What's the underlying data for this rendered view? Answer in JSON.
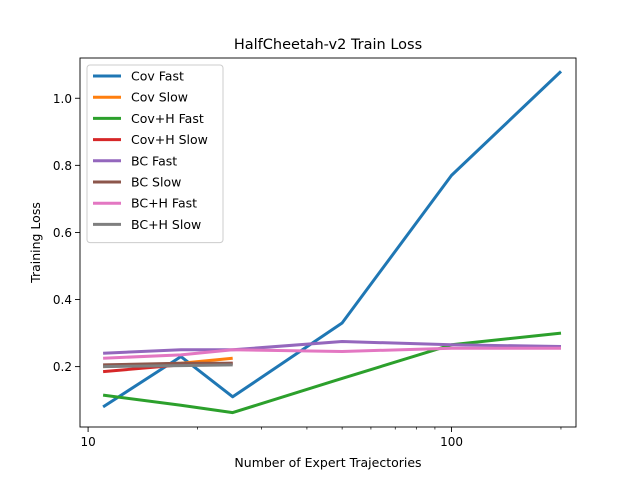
{
  "chart_data": {
    "type": "line",
    "title": "HalfCheetah-v2 Train Loss",
    "xlabel": "Number of Expert Trajectories",
    "ylabel": "Training Loss",
    "xscale": "log",
    "xlim": [
      9.5,
      220
    ],
    "ylim": [
      0.02,
      1.12
    ],
    "xticks": [
      10,
      100
    ],
    "xtick_labels": [
      "10",
      "100"
    ],
    "yticks": [
      0.2,
      0.4,
      0.6,
      0.8,
      1.0
    ],
    "ytick_labels": [
      "0.2",
      "0.4",
      "0.6",
      "0.8",
      "1.0"
    ],
    "grid": false,
    "legend_position": "top-left",
    "series": [
      {
        "name": "Cov Fast",
        "color": "#1f77b4",
        "x": [
          11,
          18,
          25,
          50,
          100,
          200
        ],
        "y": [
          0.08,
          0.23,
          0.11,
          0.33,
          0.77,
          1.08
        ]
      },
      {
        "name": "Cov Slow",
        "color": "#ff7f0e",
        "x": [
          11,
          18,
          25
        ],
        "y": [
          0.2,
          0.21,
          0.225
        ]
      },
      {
        "name": "Cov+H Fast",
        "color": "#2ca02c",
        "x": [
          11,
          18,
          25,
          50,
          100,
          200
        ],
        "y": [
          0.115,
          0.085,
          0.063,
          0.165,
          0.265,
          0.3
        ]
      },
      {
        "name": "Cov+H Slow",
        "color": "#d62728",
        "x": [
          11,
          18,
          25
        ],
        "y": [
          0.185,
          0.205,
          0.21
        ]
      },
      {
        "name": "BC Fast",
        "color": "#9467bd",
        "x": [
          11,
          18,
          25,
          50,
          100,
          200
        ],
        "y": [
          0.24,
          0.25,
          0.25,
          0.275,
          0.265,
          0.26
        ]
      },
      {
        "name": "BC Slow",
        "color": "#8c564b",
        "x": [
          11,
          18,
          25
        ],
        "y": [
          0.205,
          0.21,
          0.21
        ]
      },
      {
        "name": "BC+H Fast",
        "color": "#e377c2",
        "x": [
          11,
          18,
          25,
          50,
          100,
          200
        ],
        "y": [
          0.225,
          0.235,
          0.25,
          0.245,
          0.255,
          0.255
        ]
      },
      {
        "name": "BC+H Slow",
        "color": "#7f7f7f",
        "x": [
          11,
          18,
          25
        ],
        "y": [
          0.2,
          0.203,
          0.205
        ]
      }
    ]
  }
}
